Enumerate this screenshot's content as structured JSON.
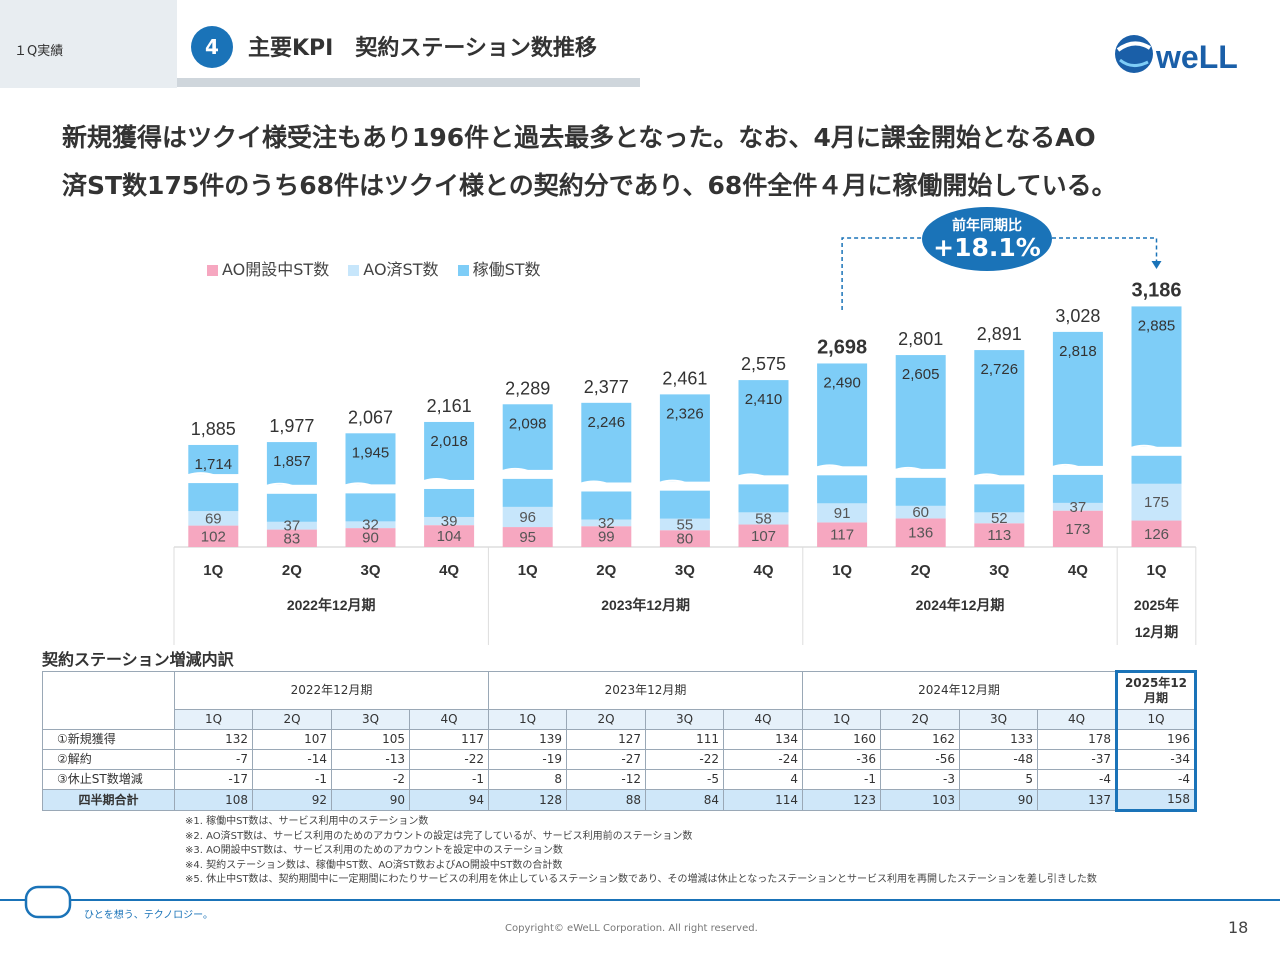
{
  "header": {
    "section_label": "１Q実績",
    "number": "4",
    "title": "主要KPI　契約ステーション数推移",
    "logo_text": "weLL"
  },
  "headline": {
    "line1": "新規獲得はツクイ様受注もあり196件と過去最多となった。なお、4月に課金開始となるAO",
    "line2": "済ST数175件のうち68件はツクイ様との契約分であり、68件全件４月に稼働開始している。"
  },
  "yoy": {
    "label": "前年同期比",
    "value": "+18.1%"
  },
  "colors": {
    "ao_setup": "#f6a7c0",
    "ao_done": "#c7e6fb",
    "active": "#7ecdf7",
    "accent": "#1a73b8"
  },
  "chart_data": {
    "type": "bar",
    "stacked": true,
    "categories": [
      "1Q",
      "2Q",
      "3Q",
      "4Q",
      "1Q",
      "2Q",
      "3Q",
      "4Q",
      "1Q",
      "2Q",
      "3Q",
      "4Q",
      "1Q"
    ],
    "groups": [
      {
        "label": "2022年12月期",
        "span": 4
      },
      {
        "label": "2023年12月期",
        "span": 4
      },
      {
        "label": "2024年12月期",
        "span": 4
      },
      {
        "label": "2025年\n12月期",
        "span": 1
      }
    ],
    "series": [
      {
        "name": "AO開設中ST数",
        "values": [
          102,
          83,
          90,
          104,
          95,
          99,
          80,
          107,
          117,
          136,
          113,
          173,
          126
        ]
      },
      {
        "name": "AO済ST数",
        "values": [
          69,
          37,
          32,
          39,
          96,
          32,
          55,
          58,
          91,
          60,
          52,
          37,
          175
        ]
      },
      {
        "name": "稼働ST数",
        "values": [
          1714,
          1857,
          1945,
          2018,
          2098,
          2246,
          2326,
          2410,
          2490,
          2605,
          2726,
          2818,
          2885
        ]
      }
    ],
    "totals": [
      "1,885",
      "1,977",
      "2,067",
      "2,161",
      "2,289",
      "2,377",
      "2,461",
      "2,575",
      "2,698",
      "2,801",
      "2,891",
      "3,028",
      "3,186"
    ],
    "axis_break": true
  },
  "table": {
    "title": "契約ステーション増減内訳",
    "periods": [
      {
        "label": "2022年12月期",
        "span": 4
      },
      {
        "label": "2023年12月期",
        "span": 4
      },
      {
        "label": "2024年12月期",
        "span": 4
      },
      {
        "label": "2025年12月期",
        "span": 1
      }
    ],
    "quarters": [
      "1Q",
      "2Q",
      "3Q",
      "4Q",
      "1Q",
      "2Q",
      "3Q",
      "4Q",
      "1Q",
      "2Q",
      "3Q",
      "4Q",
      "1Q"
    ],
    "rows": [
      {
        "label": "①新規獲得",
        "values": [
          "132",
          "107",
          "105",
          "117",
          "139",
          "127",
          "111",
          "134",
          "160",
          "162",
          "133",
          "178",
          "196"
        ]
      },
      {
        "label": "②解約",
        "values": [
          "-7",
          "-14",
          "-13",
          "-22",
          "-19",
          "-27",
          "-22",
          "-24",
          "-36",
          "-56",
          "-48",
          "-37",
          "-34"
        ]
      },
      {
        "label": "③休止ST数増減",
        "values": [
          "-17",
          "-1",
          "-2",
          "-1",
          "8",
          "-12",
          "-5",
          "4",
          "-1",
          "-3",
          "5",
          "-4",
          "-4"
        ]
      }
    ],
    "total": {
      "label": "四半期合計",
      "values": [
        "108",
        "92",
        "90",
        "94",
        "128",
        "88",
        "84",
        "114",
        "123",
        "103",
        "90",
        "137",
        "158"
      ]
    }
  },
  "notes": [
    "※1.  稼働中ST数は、サービス利用中のステーション数",
    "※2.  AO済ST数は、サービス利用のためのアカウントの設定は完了しているが、サービス利用前のステーション数",
    "※3.  AO開設中ST数は、サービス利用のためのアカウントを設定中のステーション数",
    "※4.  契約ステーション数は、稼働中ST数、AO済ST数およびAO開設中ST数の合計数",
    "※5.  休止中ST数は、契約期間中に一定期間にわたりサービスの利用を休止しているステーション数であり、その増減は休止となったステーションとサービス利用を再開したステーションを差し引きした数"
  ],
  "footer": {
    "tagline": "ひとを想う、テクノロジー。",
    "copyright": "Copyright© eWeLL Corporation. All right reserved.",
    "page": "18"
  }
}
